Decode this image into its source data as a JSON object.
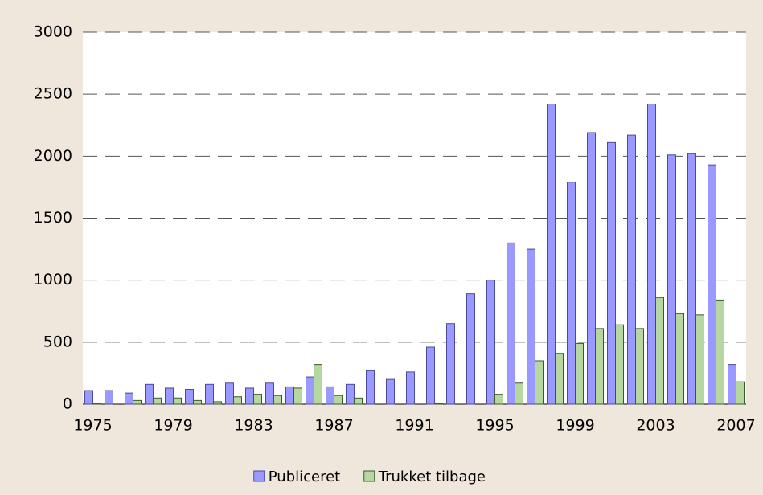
{
  "chart_data": {
    "type": "bar",
    "categories": [
      "1975",
      null,
      null,
      null,
      "1979",
      null,
      null,
      null,
      "1983",
      null,
      null,
      null,
      "1987",
      null,
      null,
      null,
      "1991",
      null,
      null,
      null,
      "1995",
      null,
      null,
      null,
      "1999",
      null,
      null,
      null,
      "2003",
      null,
      null,
      null,
      "2007"
    ],
    "series": [
      {
        "name": "Publiceret",
        "color": "#9999ff",
        "values": [
          110,
          110,
          90,
          160,
          130,
          120,
          160,
          170,
          130,
          170,
          140,
          220,
          140,
          160,
          270,
          200,
          260,
          460,
          650,
          890,
          1000,
          1300,
          1250,
          2420,
          1790,
          2190,
          2110,
          2170,
          2420,
          2010,
          2020,
          1930,
          320
        ]
      },
      {
        "name": "Trukket tilbage",
        "color": "#b6d7a0",
        "values": [
          5,
          0,
          30,
          50,
          50,
          30,
          20,
          60,
          80,
          70,
          130,
          320,
          70,
          50,
          0,
          0,
          0,
          5,
          0,
          0,
          80,
          170,
          350,
          410,
          490,
          610,
          640,
          610,
          860,
          730,
          720,
          840,
          180
        ]
      }
    ],
    "ylim": [
      0,
      3000
    ],
    "yticks": [
      0,
      500,
      1000,
      1500,
      2000,
      2500,
      3000
    ],
    "grid": true,
    "legend": "bottom"
  }
}
